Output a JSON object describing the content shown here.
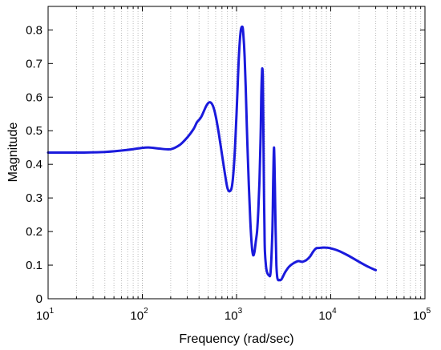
{
  "chart_data": {
    "type": "line",
    "title": "",
    "xlabel": "Frequency (rad/sec)",
    "ylabel": "Magnitude",
    "xscale": "log",
    "xlim": [
      10,
      100000
    ],
    "ylim": [
      0,
      0.87
    ],
    "grid": "x-major-and-minor-dotted",
    "x_ticks": [
      {
        "base": "10",
        "exp": "1"
      },
      {
        "base": "10",
        "exp": "2"
      },
      {
        "base": "10",
        "exp": "3"
      },
      {
        "base": "10",
        "exp": "4"
      },
      {
        "base": "10",
        "exp": "5"
      }
    ],
    "y_ticks": [
      "0",
      "0.1",
      "0.2",
      "0.3",
      "0.4",
      "0.5",
      "0.6",
      "0.7",
      "0.8"
    ],
    "series": [
      {
        "color": "#1a1adc",
        "x": [
          10,
          20,
          40,
          70,
          100,
          120,
          150,
          200,
          250,
          300,
          350,
          380,
          420,
          480,
          520,
          560,
          600,
          650,
          700,
          750,
          800,
          850,
          900,
          950,
          1000,
          1050,
          1100,
          1150,
          1180,
          1220,
          1260,
          1300,
          1350,
          1400,
          1450,
          1500,
          1550,
          1600,
          1650,
          1700,
          1750,
          1800,
          1830,
          1860,
          1880,
          1900,
          1920,
          1940,
          1960,
          1980,
          2000,
          2050,
          2100,
          2200,
          2300,
          2400,
          2450,
          2500,
          2550,
          2600,
          2650,
          2700,
          2750,
          2800,
          2850,
          2900,
          3000,
          3100,
          3300,
          3600,
          4000,
          4500,
          5000,
          5500,
          6000,
          6500,
          7000,
          7500,
          8000,
          9000,
          10000,
          12000,
          15000,
          20000,
          25000,
          30000
        ],
        "y": [
          0.435,
          0.435,
          0.437,
          0.443,
          0.449,
          0.45,
          0.447,
          0.445,
          0.458,
          0.48,
          0.505,
          0.525,
          0.54,
          0.575,
          0.585,
          0.575,
          0.545,
          0.49,
          0.43,
          0.375,
          0.33,
          0.32,
          0.34,
          0.42,
          0.55,
          0.7,
          0.79,
          0.81,
          0.79,
          0.72,
          0.6,
          0.47,
          0.34,
          0.23,
          0.16,
          0.13,
          0.14,
          0.17,
          0.2,
          0.26,
          0.35,
          0.48,
          0.6,
          0.67,
          0.685,
          0.66,
          0.55,
          0.42,
          0.3,
          0.2,
          0.14,
          0.1,
          0.08,
          0.07,
          0.08,
          0.2,
          0.35,
          0.45,
          0.34,
          0.2,
          0.1,
          0.065,
          0.057,
          0.055,
          0.056,
          0.055,
          0.058,
          0.065,
          0.08,
          0.095,
          0.105,
          0.112,
          0.11,
          0.115,
          0.125,
          0.14,
          0.15,
          0.151,
          0.152,
          0.152,
          0.15,
          0.143,
          0.13,
          0.11,
          0.095,
          0.085
        ]
      }
    ]
  }
}
